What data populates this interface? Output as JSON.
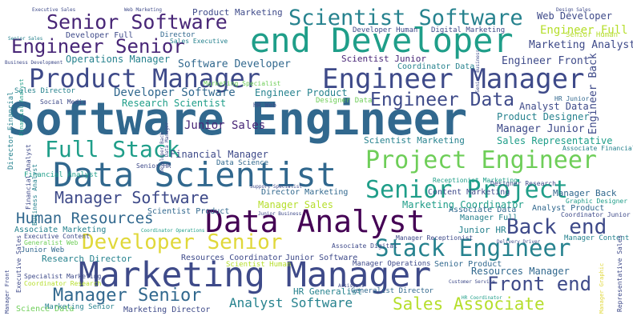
{
  "word_cloud": {
    "colors": {
      "purple": "#482677",
      "indigo": "#3e4a89",
      "blue": "#31688e",
      "teal": "#26828e",
      "green": "#1f9e89",
      "lime": "#6ece58",
      "yellow": "#b5de2b",
      "gold": "#e0d83a"
    },
    "words": [
      {
        "text": "Software Engineer",
        "color": "#31688e"
      },
      {
        "text": "end Developer",
        "color": "#1f9e89"
      },
      {
        "text": "Data Scientist",
        "color": "#31688e"
      },
      {
        "text": "Marketing Manager",
        "color": "#3e4a89"
      },
      {
        "text": "Data Analyst",
        "color": "#440154"
      },
      {
        "text": "Engineer Manager",
        "color": "#3e4a89"
      },
      {
        "text": "Product Manager",
        "color": "#3e4a89"
      },
      {
        "text": "Scientist Software",
        "color": "#26828e"
      },
      {
        "text": "Senior Software",
        "color": "#482677"
      },
      {
        "text": "Project Engineer",
        "color": "#6ece58"
      },
      {
        "text": "Stack Engineer",
        "color": "#26828e"
      },
      {
        "text": "Senior Project",
        "color": "#1f9e89"
      },
      {
        "text": "Full Stack",
        "color": "#1f9e89"
      },
      {
        "text": "Developer Senior",
        "color": "#e0d83a"
      },
      {
        "text": "Engineer Senior",
        "color": "#482677"
      },
      {
        "text": "Engineer Data",
        "color": "#3e4a89"
      },
      {
        "text": "Back end",
        "color": "#3e4a89"
      },
      {
        "text": "Front end",
        "color": "#3e4a89"
      },
      {
        "text": "Manager Software",
        "color": "#3e4a89"
      },
      {
        "text": "Manager Senior",
        "color": "#31688e"
      },
      {
        "text": "Sales Associate",
        "color": "#b5de2b"
      },
      {
        "text": "Human Resources",
        "color": "#31688e"
      },
      {
        "text": "Analyst Software",
        "color": "#26828e"
      },
      {
        "text": "Software Developer",
        "color": "#31688e"
      },
      {
        "text": "Developer Software",
        "color": "#31688e"
      },
      {
        "text": "Operations Manager",
        "color": "#26828e"
      },
      {
        "text": "Engineer Full",
        "color": "#b5de2b"
      },
      {
        "text": "Marketing Analyst",
        "color": "#3e4a89"
      },
      {
        "text": "Engineer Front",
        "color": "#3e4a89"
      },
      {
        "text": "Web Developer",
        "color": "#3e4a89"
      },
      {
        "text": "Product Marketing",
        "color": "#3e4a89"
      },
      {
        "text": "Junior Sales",
        "color": "#482677"
      },
      {
        "text": "Financial Manager",
        "color": "#3e4a89"
      },
      {
        "text": "Manager Junior",
        "color": "#3e4a89"
      },
      {
        "text": "Analyst Data",
        "color": "#3e4a89"
      },
      {
        "text": "Product Designer",
        "color": "#26828e"
      },
      {
        "text": "Sales Representative",
        "color": "#1f9e89"
      },
      {
        "text": "Research Scientist",
        "color": "#1f9e89"
      },
      {
        "text": "Engineer Product",
        "color": "#26828e"
      },
      {
        "text": "Scientist Marketing",
        "color": "#26828e"
      },
      {
        "text": "Resources Manager",
        "color": "#31688e"
      },
      {
        "text": "Manager Sales",
        "color": "#b5de2b"
      },
      {
        "text": "Director Marketing",
        "color": "#31688e"
      },
      {
        "text": "Marketing Coordinator",
        "color": "#1f9e89"
      },
      {
        "text": "Scientist Product",
        "color": "#31688e"
      },
      {
        "text": "Associate Marketing",
        "color": "#26828e"
      },
      {
        "text": "Research Director",
        "color": "#26828e"
      },
      {
        "text": "Resources Coordinator",
        "color": "#3e4a89"
      },
      {
        "text": "Junior Software",
        "color": "#3e4a89"
      },
      {
        "text": "Scientist Human",
        "color": "#b5de2b"
      },
      {
        "text": "Senior Product",
        "color": "#31688e"
      },
      {
        "text": "Manager Operations",
        "color": "#3e4a89"
      },
      {
        "text": "HR Generalist",
        "color": "#26828e"
      },
      {
        "text": "Generalist Director",
        "color": "#31688e"
      },
      {
        "text": "Marketing Director",
        "color": "#3e4a89"
      },
      {
        "text": "Science Data",
        "color": "#6ece58"
      },
      {
        "text": "Manager Full",
        "color": "#26828e"
      },
      {
        "text": "Manager Back",
        "color": "#31688e"
      },
      {
        "text": "Analyst Product",
        "color": "#31688e"
      },
      {
        "text": "Junior HR",
        "color": "#26828e"
      },
      {
        "text": "Manager Content",
        "color": "#26828e"
      },
      {
        "text": "Content Marketing",
        "color": "#3e4a89"
      },
      {
        "text": "Associate Data",
        "color": "#31688e"
      },
      {
        "text": "Developer Human",
        "color": "#3e4a89"
      },
      {
        "text": "Digital Marketing",
        "color": "#3e4a89"
      },
      {
        "text": "Scientist Junior",
        "color": "#482677"
      },
      {
        "text": "Coordinator Data",
        "color": "#26828e"
      },
      {
        "text": "Developer Full",
        "color": "#3e4a89"
      },
      {
        "text": "Designer Data",
        "color": "#6ece58"
      },
      {
        "text": "Sales Director",
        "color": "#26828e"
      },
      {
        "text": "Social Media",
        "color": "#3e4a89"
      },
      {
        "text": "Data Science",
        "color": "#31688e"
      },
      {
        "text": "Senior HR",
        "color": "#3e4a89"
      },
      {
        "text": "Director",
        "color": "#31688e"
      },
      {
        "text": "Sales Executive",
        "color": "#26828e"
      },
      {
        "text": "Senior Human",
        "color": "#b5de2b"
      },
      {
        "text": "Financial Analyst",
        "color": "#1f9e89"
      },
      {
        "text": "Director Financial",
        "color": "#26828e"
      },
      {
        "text": "Engineer Back",
        "color": "#3e4a89"
      },
      {
        "text": "Executive Content",
        "color": "#3e4a89"
      },
      {
        "text": "Generalist Web",
        "color": "#6ece58"
      },
      {
        "text": "Junior Web",
        "color": "#31688e"
      },
      {
        "text": "Marketing Senior",
        "color": "#26828e"
      },
      {
        "text": "Specialist Marketing",
        "color": "#3e4a89"
      },
      {
        "text": "Coordinator Research",
        "color": "#b5de2b"
      },
      {
        "text": "Manager Receptionist",
        "color": "#3e4a89"
      },
      {
        "text": "Associate Digital",
        "color": "#3e4a89"
      },
      {
        "text": "Receptionist Marketing",
        "color": "#1f9e89"
      },
      {
        "text": "Associate Financial",
        "color": "#26828e"
      },
      {
        "text": "Graphic Designer",
        "color": "#1f9e89"
      },
      {
        "text": "Coordinator Junior",
        "color": "#3e4a89"
      },
      {
        "text": "HR Junior",
        "color": "#31688e"
      },
      {
        "text": "HR Web",
        "color": "#3e4a89"
      },
      {
        "text": "Designer Research",
        "color": "#3e4a89"
      },
      {
        "text": "Marketing Specialist",
        "color": "#6ece58"
      },
      {
        "text": "Senior Sales",
        "color": "#26828e"
      },
      {
        "text": "HR Coordinator",
        "color": "#1f9e89"
      },
      {
        "text": "Financial Analyst",
        "color": "#3e4a89"
      },
      {
        "text": "Business Analyst",
        "color": "#26828e"
      },
      {
        "text": "Representative Sales",
        "color": "#3e4a89"
      },
      {
        "text": "Manager Front",
        "color": "#3e4a89"
      },
      {
        "text": "Executive Sales",
        "color": "#3e4a89"
      },
      {
        "text": "Web Marketing",
        "color": "#3e4a89"
      },
      {
        "text": "Design Sales",
        "color": "#3e4a89"
      },
      {
        "text": "Business Development",
        "color": "#3e4a89"
      },
      {
        "text": "Junior Business",
        "color": "#3e4a89"
      },
      {
        "text": "Customer Service",
        "color": "#3e4a89"
      },
      {
        "text": "Support Specialist",
        "color": "#3e4a89"
      },
      {
        "text": "Coordinator Operations",
        "color": "#1f9e89"
      },
      {
        "text": "Developer Back",
        "color": "#3e4a89"
      },
      {
        "text": "Manager Graphic",
        "color": "#e0d83a"
      },
      {
        "text": "Senior Business",
        "color": "#3e4a89"
      },
      {
        "text": "Delivery Driver",
        "color": "#3e4a89"
      },
      {
        "text": "Data Manager",
        "color": "#3e4a89"
      },
      {
        "text": "Assistant",
        "color": "#3e4a89"
      }
    ]
  }
}
